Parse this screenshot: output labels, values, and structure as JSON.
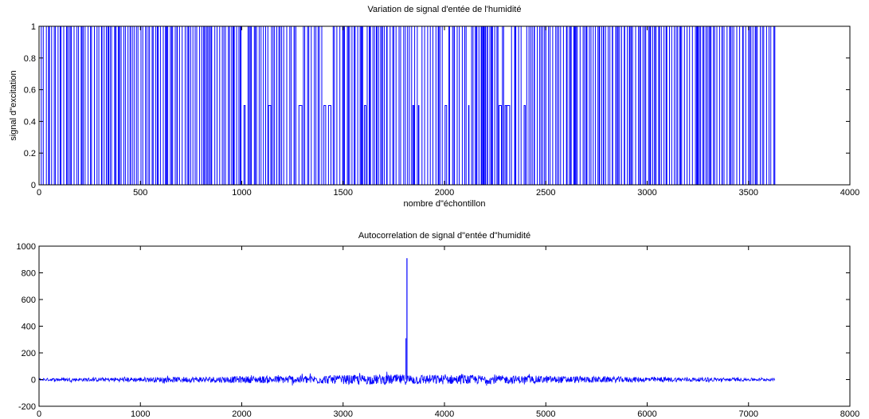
{
  "chart_data": [
    {
      "type": "line",
      "title": "Variation de signal d'entée de l'humidité",
      "xlabel": "nombre d\"échontillon",
      "ylabel": "signal d\"excitation",
      "xlim": [
        0,
        4000
      ],
      "ylim": [
        0,
        1
      ],
      "xticks": [
        "0",
        "500",
        "1000",
        "1500",
        "2000",
        "2500",
        "3000",
        "3500",
        "4000"
      ],
      "yticks": [
        "0",
        "0.2",
        "0.4",
        "0.6",
        "0.8",
        "1"
      ],
      "grid": false,
      "line_color": "#0000ff",
      "series": [
        {
          "signal_type": "random binary excitation sequence (values 0 and 1, occasionally 0.5)",
          "x_range": [
            0,
            3630
          ],
          "values": [
            0,
            1,
            0.5
          ]
        }
      ]
    },
    {
      "type": "line",
      "title": "Autocorrelation de signal d\"entée d\"humidité",
      "xlabel": "",
      "ylabel": "",
      "xlim": [
        0,
        8000
      ],
      "ylim": [
        -200,
        1000
      ],
      "xticks": [
        "0",
        "1000",
        "2000",
        "3000",
        "4000",
        "5000",
        "6000",
        "7000",
        "8000"
      ],
      "yticks": [
        "-200",
        "0",
        "200",
        "400",
        "600",
        "800",
        "1000"
      ],
      "grid": false,
      "line_color": "#0000ff",
      "series": [
        {
          "x_range": [
            0,
            7260
          ],
          "peak": {
            "x": 3630,
            "y": 910
          },
          "secondary_peak": {
            "x": 3620,
            "y": 310
          },
          "noise_band": [
            -60,
            70
          ]
        }
      ]
    }
  ]
}
